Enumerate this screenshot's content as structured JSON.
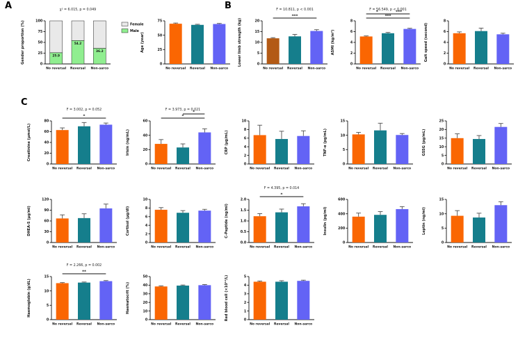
{
  "figure": {
    "panel_labels": [
      "A",
      "B",
      "C"
    ]
  },
  "colors": {
    "orange": "#FA6602",
    "teal": "#157E8C",
    "purple": "#6363F5",
    "brown": "#B35A15",
    "male_green": "#90EE90",
    "female_gray": "#E9E9E9",
    "axis": "#111111",
    "error_bar": "#4d4d4d",
    "sig_line": "#111111"
  },
  "categories": [
    "No reversal",
    "Reversal",
    "Non-sarco"
  ],
  "legend": {
    "items": [
      {
        "label": "Female",
        "color": "female_gray"
      },
      {
        "label": "Male",
        "color": "male_green"
      }
    ]
  },
  "chart_data": [
    {
      "id": "gender-proportion",
      "panel": "A",
      "type": "stacked_bar",
      "stat": "χ² = 6.015, p = 0.049",
      "ylabel": "Gender proportion (%)",
      "ylim": [
        0,
        100
      ],
      "yticks": [
        0,
        25,
        50,
        75,
        100
      ],
      "categories": [
        "No reversal",
        "Reversal",
        "Non-sarco"
      ],
      "series": [
        {
          "name": "Male",
          "values": [
            25.9,
            54.2,
            36.2
          ]
        },
        {
          "name": "Female",
          "values": [
            74.1,
            45.8,
            63.8
          ]
        }
      ],
      "bar_labels": [
        "25.9",
        "54.2",
        "36.2"
      ],
      "legend_position": "right"
    },
    {
      "id": "age",
      "panel": "A",
      "type": "bar",
      "ylabel": "Age (year)",
      "ylim": [
        0,
        75
      ],
      "yticks": [
        0,
        25,
        50,
        75
      ],
      "values": [
        70,
        68,
        69.5
      ],
      "errors": [
        1.2,
        1,
        1
      ],
      "bar_colors": [
        "orange",
        "teal",
        "purple"
      ]
    },
    {
      "id": "lower-limb-strength",
      "panel": "B",
      "type": "bar",
      "stat": "F = 10.811, p < 0.001",
      "ylabel": "Lower limb strength (kg)",
      "ylim": [
        0,
        20
      ],
      "yticks": [
        0,
        5,
        10,
        15,
        20
      ],
      "values": [
        11.9,
        12.8,
        15.3
      ],
      "errors": [
        0.3,
        0.9,
        0.6
      ],
      "bar_colors": [
        "brown",
        "teal",
        "purple"
      ],
      "sig": [
        {
          "a": 0,
          "b": 2,
          "label": "***",
          "row": 1
        }
      ]
    },
    {
      "id": "asmi",
      "panel": "B",
      "type": "bar",
      "stat": "F = 56.549, p < 0.001",
      "ylabel": "ASMI (kg/m²)",
      "ylim": [
        0,
        8
      ],
      "yticks": [
        0,
        2,
        4,
        6,
        8
      ],
      "values": [
        5.1,
        5.7,
        6.5
      ],
      "errors": [
        0.1,
        0.15,
        0.12
      ],
      "bar_colors": [
        "orange",
        "teal",
        "purple"
      ],
      "sig": [
        {
          "a": 0,
          "b": 1,
          "label": "*",
          "row": 0
        },
        {
          "a": 1,
          "b": 2,
          "label": "***",
          "row": 0
        },
        {
          "a": 0,
          "b": 2,
          "label": "***",
          "row": 1
        }
      ]
    },
    {
      "id": "gait-speed",
      "panel": "B",
      "type": "bar",
      "ylabel": "Gait speed (second)",
      "ylim": [
        0,
        8
      ],
      "yticks": [
        0,
        2,
        4,
        6,
        8
      ],
      "values": [
        5.7,
        6.1,
        5.5
      ],
      "errors": [
        0.25,
        0.55,
        0.2
      ],
      "bar_colors": [
        "orange",
        "teal",
        "purple"
      ]
    },
    {
      "id": "creatinine",
      "panel": "C",
      "type": "bar",
      "stat": "F = 3.002, p = 0.052",
      "ylabel": "Creatinine (μmol/L)",
      "ylim": [
        0,
        80
      ],
      "yticks": [
        0,
        20,
        40,
        60,
        80
      ],
      "values": [
        63,
        70,
        73
      ],
      "errors": [
        4,
        7,
        3
      ],
      "bar_colors": [
        "orange",
        "teal",
        "purple"
      ],
      "sig": [
        {
          "a": 0,
          "b": 2,
          "label": "*",
          "row": 1
        }
      ]
    },
    {
      "id": "irisin",
      "panel": "C",
      "type": "bar",
      "stat": "F = 3.973, p = 0.021",
      "ylabel": "Irisin (ng/mL)",
      "ylim": [
        0,
        60
      ],
      "yticks": [
        0,
        20,
        40,
        60
      ],
      "values": [
        28,
        23,
        44
      ],
      "errors": [
        6,
        5,
        5
      ],
      "bar_colors": [
        "orange",
        "teal",
        "purple"
      ],
      "sig": [
        {
          "a": 1,
          "b": 2,
          "label": "*",
          "row": 0
        },
        {
          "a": 0,
          "b": 2,
          "label": "*",
          "row": 1
        }
      ]
    },
    {
      "id": "crp",
      "panel": "C",
      "type": "bar",
      "ylabel": "CRP (μg/mL)",
      "ylim": [
        0,
        10
      ],
      "yticks": [
        0,
        2,
        4,
        6,
        8,
        10
      ],
      "values": [
        6.7,
        5.8,
        6.5
      ],
      "errors": [
        2.3,
        1.8,
        1.2
      ],
      "bar_colors": [
        "orange",
        "teal",
        "purple"
      ]
    },
    {
      "id": "tnf-alpha",
      "panel": "C",
      "type": "bar",
      "ylabel": "TNF-α (pg/mL)",
      "ylim": [
        0,
        15
      ],
      "yticks": [
        0,
        5,
        10,
        15
      ],
      "values": [
        10.3,
        11.7,
        10.1
      ],
      "errors": [
        0.7,
        2.5,
        0.5
      ],
      "bar_colors": [
        "orange",
        "teal",
        "purple"
      ]
    },
    {
      "id": "gssg",
      "panel": "C",
      "type": "bar",
      "ylabel": "GSSG (pg/mL)",
      "ylim": [
        0,
        25
      ],
      "yticks": [
        0,
        5,
        10,
        15,
        20,
        25
      ],
      "values": [
        15,
        14.5,
        21.5
      ],
      "errors": [
        2.5,
        2,
        2
      ],
      "bar_colors": [
        "orange",
        "teal",
        "purple"
      ]
    },
    {
      "id": "dhea-s",
      "panel": "C",
      "type": "bar",
      "ylabel": "DHEA-S (μg/ml)",
      "ylim": [
        0,
        120
      ],
      "yticks": [
        0,
        30,
        60,
        90,
        120
      ],
      "values": [
        67,
        68,
        95
      ],
      "errors": [
        10,
        12,
        12
      ],
      "bar_colors": [
        "orange",
        "teal",
        "purple"
      ]
    },
    {
      "id": "cortisol",
      "panel": "C",
      "type": "bar",
      "ylabel": "Cortisol (μg/dl)",
      "ylim": [
        0,
        10
      ],
      "yticks": [
        0,
        2,
        4,
        6,
        8,
        10
      ],
      "values": [
        7.6,
        6.9,
        7.4
      ],
      "errors": [
        0.5,
        0.5,
        0.3
      ],
      "bar_colors": [
        "orange",
        "teal",
        "purple"
      ]
    },
    {
      "id": "c-peptide",
      "panel": "C",
      "type": "bar",
      "stat": "F = 4.395, p = 0.014",
      "ylabel": "C-Peptide (ng/ml)",
      "ylim": [
        0,
        2
      ],
      "yticks": [
        0,
        0.5,
        1,
        1.5,
        2
      ],
      "ytick_labels": [
        "0.0",
        "0.5",
        "1.0",
        "1.5",
        "2.0"
      ],
      "values": [
        1.22,
        1.4,
        1.68
      ],
      "errors": [
        0.12,
        0.15,
        0.12
      ],
      "bar_colors": [
        "orange",
        "teal",
        "purple"
      ],
      "sig": [
        {
          "a": 0,
          "b": 2,
          "label": "*",
          "row": 1
        }
      ]
    },
    {
      "id": "insulin",
      "panel": "C",
      "type": "bar",
      "ylabel": "Insulin (pg/ml)",
      "ylim": [
        0,
        600
      ],
      "yticks": [
        0,
        200,
        400,
        600
      ],
      "values": [
        360,
        385,
        465
      ],
      "errors": [
        50,
        45,
        35
      ],
      "bar_colors": [
        "orange",
        "teal",
        "purple"
      ]
    },
    {
      "id": "leptin",
      "panel": "C",
      "type": "bar",
      "ylabel": "Leptin (ng/ml)",
      "ylim": [
        0,
        15
      ],
      "yticks": [
        0,
        5,
        10,
        15
      ],
      "values": [
        9.3,
        8.7,
        13
      ],
      "errors": [
        1.8,
        1.5,
        1.2
      ],
      "bar_colors": [
        "orange",
        "teal",
        "purple"
      ]
    },
    {
      "id": "haemoglobin",
      "panel": "C",
      "type": "bar",
      "stat": "F = 2.266, p = 0.002",
      "ylabel": "Haemoglobin (g/dL)",
      "ylim": [
        0,
        15
      ],
      "yticks": [
        0,
        5,
        10,
        15
      ],
      "values": [
        12.7,
        12.9,
        13.4
      ],
      "errors": [
        0.2,
        0.2,
        0.2
      ],
      "bar_colors": [
        "orange",
        "teal",
        "purple"
      ],
      "sig": [
        {
          "a": 0,
          "b": 2,
          "label": "**",
          "row": 1
        }
      ]
    },
    {
      "id": "haematocrit",
      "panel": "C",
      "type": "bar",
      "ylabel": "Haematocrit (%)",
      "ylim": [
        0,
        50
      ],
      "yticks": [
        0,
        10,
        20,
        30,
        40,
        50
      ],
      "values": [
        38.5,
        39.5,
        40
      ],
      "errors": [
        0.7,
        0.7,
        0.7
      ],
      "bar_colors": [
        "orange",
        "teal",
        "purple"
      ]
    },
    {
      "id": "red-blood-cell",
      "panel": "C",
      "type": "bar",
      "ylabel": "Red blood cell (×10¹²/L)",
      "ylim": [
        0,
        5
      ],
      "yticks": [
        0,
        1,
        2,
        3,
        4,
        5
      ],
      "values": [
        4.4,
        4.4,
        4.5
      ],
      "errors": [
        0.08,
        0.12,
        0.08
      ],
      "bar_colors": [
        "orange",
        "teal",
        "purple"
      ]
    }
  ]
}
